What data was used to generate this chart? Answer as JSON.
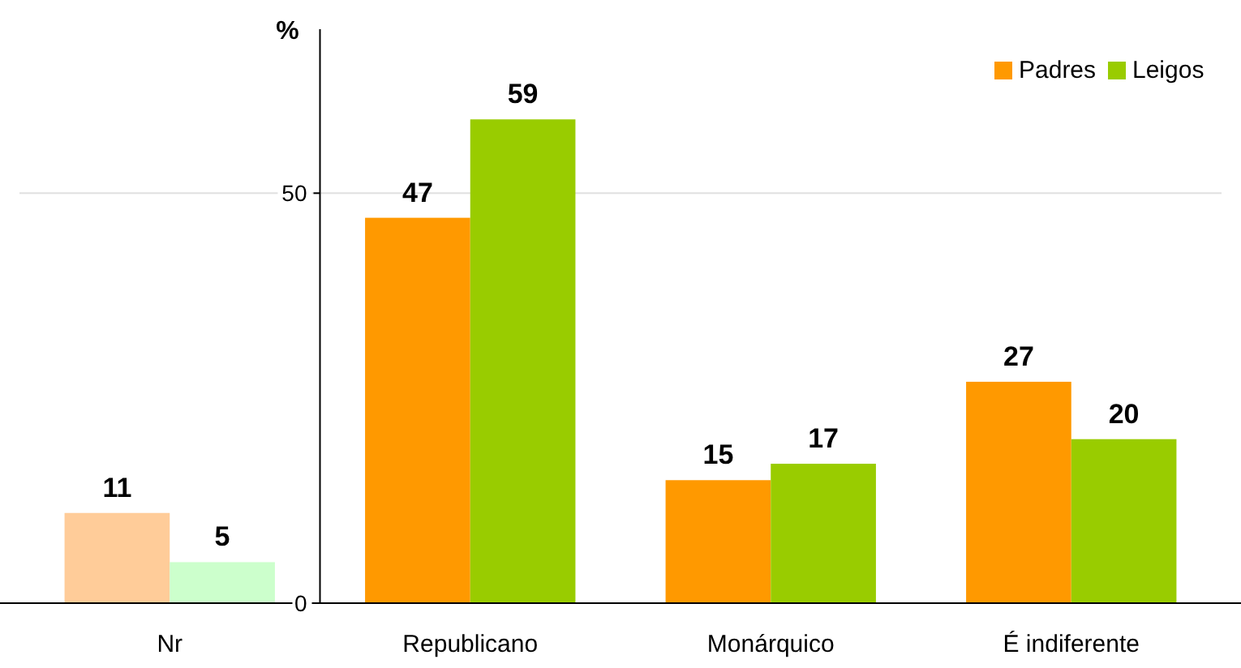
{
  "chart_data": {
    "type": "bar",
    "ylabel": "%",
    "categories": [
      "Nr",
      "Republicano",
      "Monárquico",
      "É indiferente"
    ],
    "series": [
      {
        "name": "Padres",
        "color": "#ff9900",
        "colors": [
          "#ffcc99",
          "#ff9900",
          "#ff9900",
          "#ff9900"
        ],
        "values": [
          11,
          47,
          15,
          27
        ]
      },
      {
        "name": "Leigos",
        "color": "#99cc00",
        "colors": [
          "#ccffcc",
          "#99cc00",
          "#99cc00",
          "#99cc00"
        ],
        "values": [
          5,
          59,
          17,
          20
        ]
      }
    ],
    "ylim": [
      0,
      70
    ],
    "yticks": [
      0,
      50
    ],
    "grid": "y",
    "legend": "top right",
    "data_labels": true
  }
}
